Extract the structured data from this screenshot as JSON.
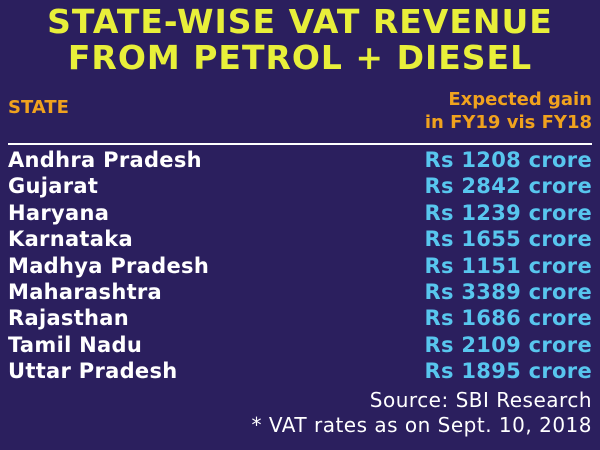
{
  "title_line1": "STATE-WISE VAT REVENUE",
  "title_line2": "FROM PETROL + DIESEL",
  "column_state": "STATE",
  "column_gain_line1": "Expected gain",
  "column_gain_line2": "in FY19 vis FY18",
  "source": "Source: SBI Research",
  "note": "* VAT rates as on Sept. 10, 2018",
  "colors": {
    "background": "#2b1f5e",
    "title": "#e8ef3a",
    "header": "#f0a21e",
    "state_text": "#ffffff",
    "amount_text": "#58c6ee"
  },
  "chart_data": {
    "type": "table",
    "title": "STATE-WISE VAT REVENUE FROM PETROL + DIESEL",
    "columns": [
      "STATE",
      "Expected gain in FY19 vis FY18"
    ],
    "rows": [
      {
        "state": "Andhra Pradesh",
        "amount": "Rs 1208 crore",
        "value": 1208
      },
      {
        "state": "Gujarat",
        "amount": "Rs 2842 crore",
        "value": 2842
      },
      {
        "state": "Haryana",
        "amount": "Rs 1239 crore",
        "value": 1239
      },
      {
        "state": "Karnataka",
        "amount": "Rs 1655 crore",
        "value": 1655
      },
      {
        "state": "Madhya Pradesh",
        "amount": "Rs 1151 crore",
        "value": 1151
      },
      {
        "state": "Maharashtra",
        "amount": "Rs 3389 crore",
        "value": 3389
      },
      {
        "state": "Rajasthan",
        "amount": "Rs 1686 crore",
        "value": 1686
      },
      {
        "state": "Tamil Nadu",
        "amount": "Rs 2109 crore",
        "value": 2109
      },
      {
        "state": "Uttar Pradesh",
        "amount": "Rs 1895 crore",
        "value": 1895
      }
    ]
  }
}
